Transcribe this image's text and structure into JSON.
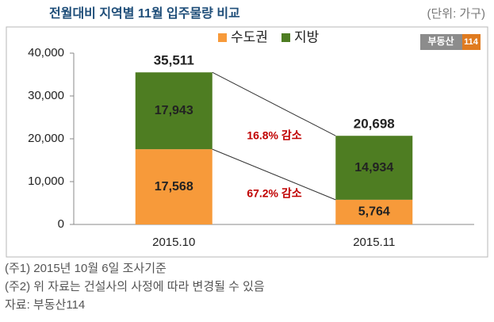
{
  "chart_data": {
    "type": "stacked_bar",
    "title": "전월대비 지역별 11월 입주물량 비교",
    "unit_label": "(단위: 가구)",
    "logo": [
      "부동산",
      "114"
    ],
    "categories": [
      "2015.10",
      "2015.11"
    ],
    "series": [
      {
        "name": "수도권",
        "color": "#f79a3a",
        "values": [
          17568,
          5764
        ],
        "value_labels": [
          "17,568",
          "5,764"
        ]
      },
      {
        "name": "지방",
        "color": "#4e7d22",
        "values": [
          17943,
          14934
        ],
        "value_labels": [
          "17,943",
          "14,934"
        ]
      }
    ],
    "total_labels": [
      "35,511",
      "20,698"
    ],
    "annotations": [
      "16.8% 감소",
      "67.2% 감소"
    ],
    "ylim": [
      0,
      40000
    ],
    "yticks": [
      0,
      {
        "value": 10000,
        "label": "10,000"
      },
      {
        "value": 20000,
        "label": "20,000"
      },
      {
        "value": 30000,
        "label": "30,000"
      },
      {
        "value": 40000,
        "label": "40,000"
      }
    ],
    "notes": [
      "(주1) 2015년 10월 6일 조사기준",
      "(주2) 위 자료는 건설사의 사정에 따라 변경될 수 있음",
      "자료: 부동산114"
    ]
  }
}
